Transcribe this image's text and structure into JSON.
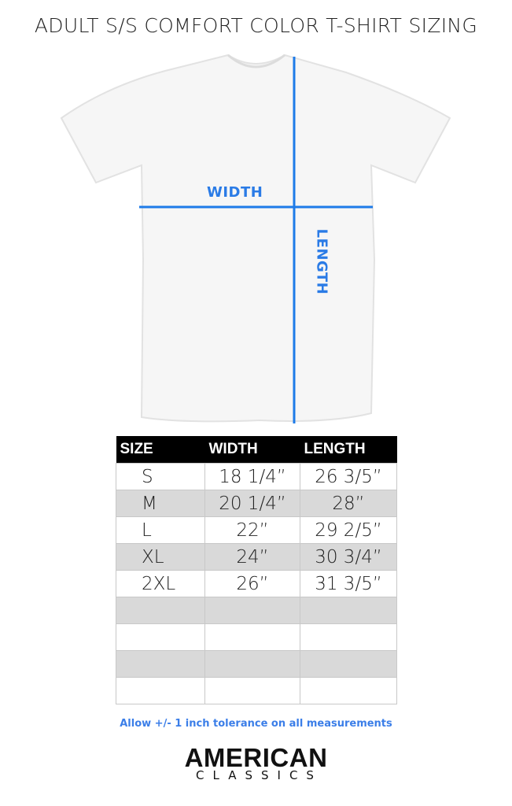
{
  "title": "ADULT S/S COMFORT COLOR T-SHIRT SIZING",
  "diagram": {
    "width_label": "WIDTH",
    "length_label": "LENGTH",
    "line_color": "#1e7be8"
  },
  "table": {
    "headers": [
      "SIZE",
      "WIDTH",
      "LENGTH"
    ],
    "rows": [
      [
        "S",
        "18 1/4”",
        "26 3/5”"
      ],
      [
        "M",
        "20 1/4”",
        "28”"
      ],
      [
        "L",
        "22”",
        "29 2/5”"
      ],
      [
        "XL",
        "24”",
        "30 3/4”"
      ],
      [
        "2XL",
        "26”",
        "31 3/5”"
      ],
      [
        "",
        "",
        ""
      ],
      [
        "",
        "",
        ""
      ],
      [
        "",
        "",
        ""
      ],
      [
        "",
        "",
        ""
      ]
    ]
  },
  "note": "Allow +/- 1 inch tolerance on all measurements",
  "brand": {
    "line1": "AMERICAN",
    "line2": "CLASSICS"
  }
}
